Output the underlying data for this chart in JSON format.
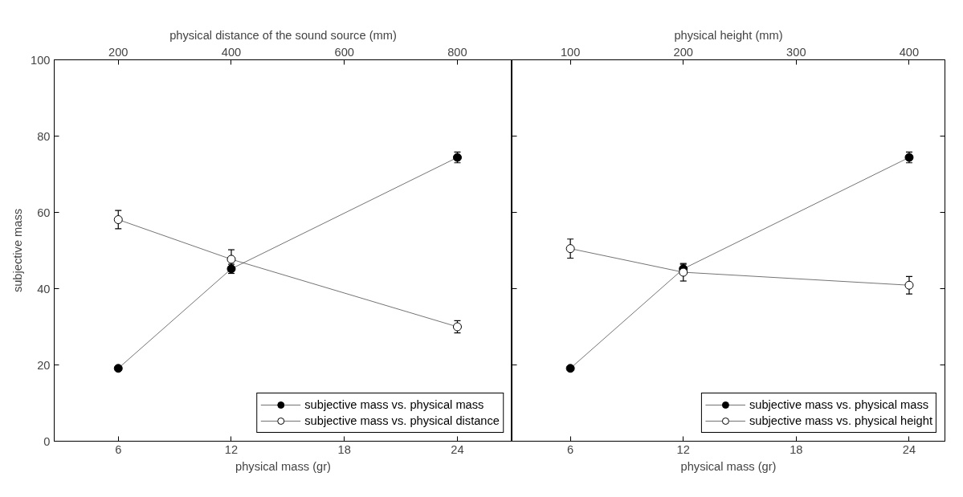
{
  "chart_data": [
    {
      "type": "line",
      "xlabel": "physical mass (gr)",
      "ylabel": "subjective mass",
      "x2label": "physical distance of the sound source (mm)",
      "x": [
        6,
        12,
        24
      ],
      "xlim": [
        2.6,
        26.9
      ],
      "xticks": [
        6,
        12,
        18,
        24
      ],
      "x2lim": [
        86.7,
        896.7
      ],
      "x2ticks": [
        200,
        400,
        600,
        800
      ],
      "ylim": [
        0,
        100
      ],
      "yticks": [
        0,
        20,
        40,
        60,
        80,
        100
      ],
      "grid": false,
      "legend": "bottom right",
      "line_style": "solid",
      "series": [
        {
          "name": "subjective mass vs. physical mass",
          "color": "#000000",
          "marker": "circle",
          "values": [
            19.1,
            45.2,
            74.4
          ],
          "errors": [
            null,
            1.2,
            1.4
          ]
        },
        {
          "name": "subjective mass vs. physical distance",
          "color": "#000000",
          "marker": "circle_open",
          "values": [
            58.1,
            47.7,
            30.0
          ],
          "errors": [
            2.4,
            2.5,
            1.6
          ]
        }
      ]
    },
    {
      "type": "line",
      "xlabel": "physical mass (gr)",
      "x2label": "physical height (mm)",
      "x": [
        6,
        12,
        24
      ],
      "xlim": [
        2.9,
        25.9
      ],
      "xticks": [
        6,
        12,
        18,
        24
      ],
      "x2lim": [
        48.3,
        431.7
      ],
      "x2ticks": [
        100,
        200,
        300,
        400
      ],
      "ylim": [
        0,
        100
      ],
      "yticks": [
        0,
        20,
        40,
        60,
        80,
        100
      ],
      "tick_labels": "x",
      "grid": false,
      "legend": "bottom right",
      "line_style": "solid",
      "series": [
        {
          "name": "subjective mass vs. physical mass",
          "color": "#000000",
          "marker": "circle",
          "values": [
            19.1,
            45.2,
            74.4
          ],
          "errors": [
            null,
            1.2,
            1.4
          ]
        },
        {
          "name": "subjective mass vs. physical height",
          "color": "#000000",
          "marker": "circle_open",
          "values": [
            50.5,
            44.3,
            40.9
          ],
          "errors": [
            2.5,
            2.3,
            2.3
          ]
        }
      ]
    }
  ]
}
